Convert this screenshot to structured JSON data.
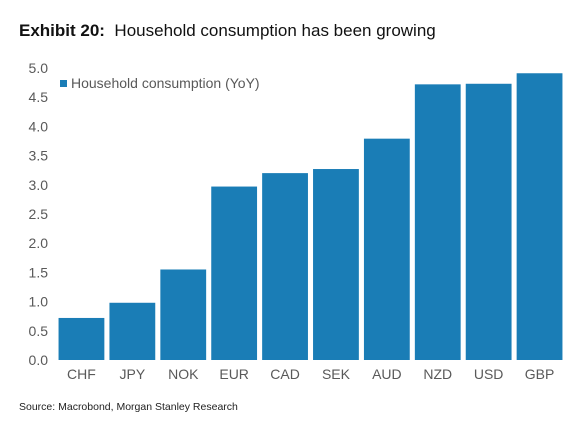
{
  "header": {
    "exhibit_label": "Exhibit 20:",
    "title": "Household consumption has been growing"
  },
  "source": "Source: Macrobond, Morgan Stanley Research",
  "colors": {
    "bar": "#1a7db6",
    "axis": "#595959",
    "grid": "#d9d9d9"
  },
  "chart_data": {
    "type": "bar",
    "title": "",
    "xlabel": "",
    "ylabel": "",
    "categories": [
      "CHF",
      "JPY",
      "NOK",
      "EUR",
      "CAD",
      "SEK",
      "AUD",
      "NZD",
      "USD",
      "GBP"
    ],
    "series": [
      {
        "name": "Household consumption (YoY)",
        "values": [
          0.72,
          0.98,
          1.55,
          2.97,
          3.2,
          3.27,
          3.79,
          4.72,
          4.73,
          4.91
        ]
      }
    ],
    "ylim": [
      0,
      5
    ],
    "yticks": [
      "0.0",
      "0.5",
      "1.0",
      "1.5",
      "2.0",
      "2.5",
      "3.0",
      "3.5",
      "4.0",
      "4.5",
      "5.0"
    ],
    "grid": false,
    "legend": "top-left"
  }
}
